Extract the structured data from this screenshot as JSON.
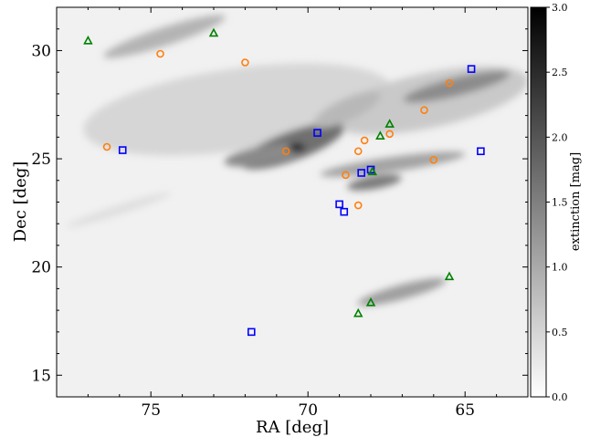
{
  "chart_data": {
    "type": "scatter",
    "xlabel": "RA [deg]",
    "ylabel": "Dec [deg]",
    "xlim": [
      78,
      63
    ],
    "ylim": [
      14,
      32
    ],
    "x_ticks": [
      "75",
      "70",
      "65"
    ],
    "y_ticks": [
      "15",
      "20",
      "25",
      "30"
    ],
    "x_tick_values": [
      75,
      70,
      65
    ],
    "y_tick_values": [
      15,
      20,
      25,
      30
    ],
    "grid": false,
    "background": "grayscale extinction map",
    "colorbar": {
      "label": "extinction [mag]",
      "range": [
        0.0,
        3.0
      ],
      "ticks": [
        "0.0",
        "0.5",
        "1.0",
        "1.5",
        "2.0",
        "2.5",
        "3.0"
      ],
      "tick_values": [
        0.0,
        0.5,
        1.0,
        1.5,
        2.0,
        2.5,
        3.0
      ],
      "colormap": "white-to-black"
    },
    "series": [
      {
        "marker": "circle",
        "color": "#ff7f0e",
        "points": [
          [
            74.7,
            29.85
          ],
          [
            72.0,
            29.45
          ],
          [
            76.4,
            25.55
          ],
          [
            70.7,
            25.35
          ],
          [
            68.4,
            25.35
          ],
          [
            68.2,
            25.85
          ],
          [
            67.4,
            26.15
          ],
          [
            66.3,
            27.25
          ],
          [
            65.5,
            28.5
          ],
          [
            66.0,
            24.95
          ],
          [
            68.8,
            24.25
          ],
          [
            68.4,
            22.85
          ]
        ]
      },
      {
        "marker": "square",
        "color": "#0000ff",
        "points": [
          [
            75.9,
            25.4
          ],
          [
            71.8,
            17.0
          ],
          [
            69.7,
            26.2
          ],
          [
            68.3,
            24.35
          ],
          [
            68.0,
            24.5
          ],
          [
            69.0,
            22.9
          ],
          [
            68.85,
            22.55
          ],
          [
            64.8,
            29.15
          ],
          [
            64.5,
            25.35
          ]
        ]
      },
      {
        "marker": "triangle",
        "color": "#008000",
        "points": [
          [
            77.0,
            30.45
          ],
          [
            73.0,
            30.8
          ],
          [
            67.7,
            26.05
          ],
          [
            67.4,
            26.6
          ],
          [
            67.95,
            24.4
          ],
          [
            65.5,
            19.55
          ],
          [
            68.0,
            18.35
          ],
          [
            68.4,
            17.85
          ]
        ]
      }
    ]
  }
}
